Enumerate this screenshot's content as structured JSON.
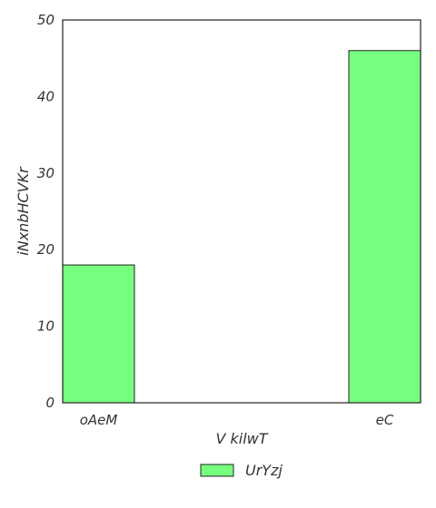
{
  "chart_data": {
    "type": "bar",
    "title": "",
    "xlabel": "V kilwT",
    "ylabel": "iNxnbHCVKr",
    "categories": [
      "oAeM",
      "eC"
    ],
    "series": [
      {
        "name": "UrYzj",
        "values": [
          18,
          46
        ],
        "color": "#77ff7f"
      }
    ],
    "ylim": [
      0,
      50
    ],
    "yticks": [
      0,
      10,
      20,
      30,
      40,
      50
    ],
    "grid": false,
    "legend_position": "bottom-center"
  }
}
